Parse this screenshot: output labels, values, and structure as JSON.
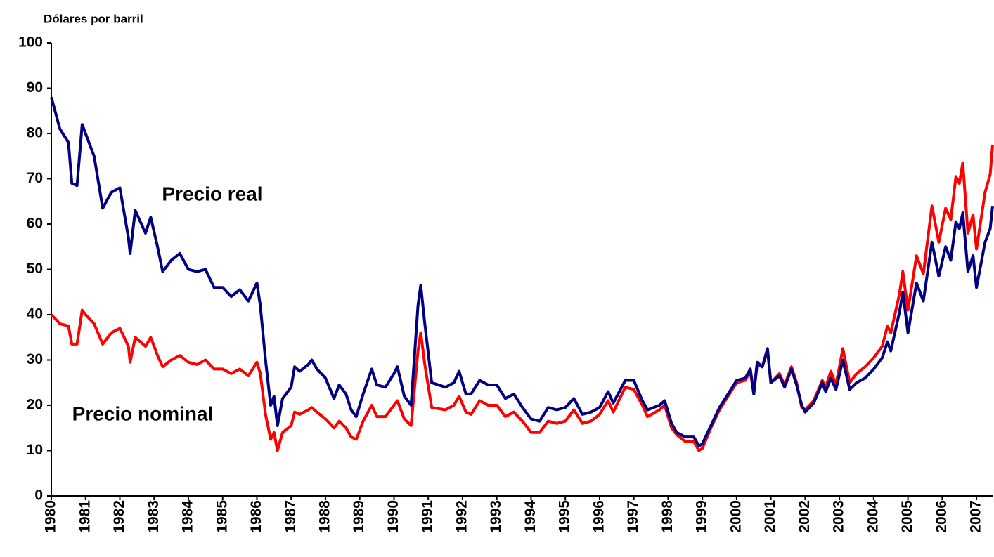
{
  "chart_data": {
    "type": "line",
    "y_axis_label": "Dólares por barril",
    "annotations": [
      "Precio real",
      "Precio nominal"
    ],
    "x": [
      1980.0,
      1980.25,
      1980.5,
      1980.6,
      1980.75,
      1980.9,
      1981.0,
      1981.25,
      1981.5,
      1981.75,
      1982.0,
      1982.25,
      1982.3,
      1982.45,
      1982.75,
      1982.9,
      1983.1,
      1983.25,
      1983.5,
      1983.75,
      1984.0,
      1984.25,
      1984.5,
      1984.75,
      1985.0,
      1985.25,
      1985.5,
      1985.75,
      1986.0,
      1986.1,
      1986.25,
      1986.4,
      1986.5,
      1986.6,
      1986.75,
      1987.0,
      1987.1,
      1987.25,
      1987.5,
      1987.6,
      1987.75,
      1988.0,
      1988.25,
      1988.4,
      1988.6,
      1988.75,
      1988.9,
      1989.1,
      1989.35,
      1989.5,
      1989.75,
      1990.0,
      1990.1,
      1990.3,
      1990.5,
      1990.7,
      1990.78,
      1990.9,
      1991.1,
      1991.5,
      1991.75,
      1991.9,
      1992.1,
      1992.25,
      1992.5,
      1992.75,
      1993.0,
      1993.25,
      1993.5,
      1993.75,
      1994.0,
      1994.25,
      1994.5,
      1994.75,
      1995.0,
      1995.25,
      1995.5,
      1995.75,
      1996.0,
      1996.25,
      1996.4,
      1996.75,
      1997.0,
      1997.25,
      1997.4,
      1997.75,
      1997.9,
      1998.1,
      1998.25,
      1998.5,
      1998.75,
      1998.9,
      1999.0,
      1999.25,
      1999.5,
      1999.75,
      2000.0,
      2000.25,
      2000.4,
      2000.5,
      2000.6,
      2000.75,
      2000.9,
      2001.0,
      2001.25,
      2001.4,
      2001.6,
      2001.75,
      2001.9,
      2002.0,
      2002.25,
      2002.5,
      2002.6,
      2002.75,
      2002.9,
      2003.1,
      2003.3,
      2003.5,
      2003.75,
      2004.0,
      2004.25,
      2004.4,
      2004.5,
      2004.75,
      2004.85,
      2005.0,
      2005.25,
      2005.45,
      2005.7,
      2005.9,
      2006.1,
      2006.25,
      2006.4,
      2006.5,
      2006.6,
      2006.75,
      2006.9,
      2007.0,
      2007.25,
      2007.4,
      2007.47
    ],
    "series": [
      {
        "name": "Precio real",
        "color": "#000080",
        "values": [
          88,
          81,
          78,
          69,
          68.5,
          82,
          80,
          75,
          63.5,
          67,
          68,
          57,
          53.5,
          63,
          58,
          61.5,
          55,
          49.5,
          52,
          53.5,
          50,
          49.5,
          50,
          46,
          46,
          44,
          45.5,
          43,
          47,
          42,
          30,
          20,
          22,
          15.5,
          21.5,
          24,
          28.5,
          27.5,
          29,
          30,
          28,
          26,
          21.5,
          24.5,
          22.5,
          19,
          17.5,
          22.5,
          28,
          24.5,
          24,
          27,
          28.5,
          22,
          20,
          42,
          46.5,
          38,
          25,
          24,
          25,
          27.5,
          22.5,
          22.5,
          25.5,
          24.5,
          24.5,
          21.5,
          22.5,
          19.5,
          17,
          16.5,
          19.5,
          19,
          19.5,
          21.5,
          18,
          18.5,
          19.5,
          23,
          20.5,
          25.5,
          25.5,
          21,
          19,
          20,
          21,
          16,
          14,
          13,
          13,
          11,
          11.5,
          15.5,
          19.5,
          22.5,
          25.5,
          26,
          28,
          22.5,
          29.5,
          28.5,
          32.5,
          25,
          26.5,
          24,
          28,
          24.5,
          20,
          18.5,
          20.5,
          25,
          23,
          26,
          23.5,
          30,
          23.5,
          25,
          26,
          28,
          30.5,
          34,
          32,
          40.5,
          45,
          36,
          47,
          43,
          56,
          48.5,
          55,
          52,
          60.5,
          59,
          62.5,
          49.5,
          53,
          46,
          56,
          59,
          64
        ]
      },
      {
        "name": "Precio nominal",
        "color": "#ff0000",
        "values": [
          40,
          38,
          37.5,
          33.5,
          33.5,
          41,
          40,
          38,
          33.5,
          36,
          37,
          33,
          29.5,
          35,
          33,
          35,
          31,
          28.5,
          30,
          31,
          29.5,
          29,
          30,
          28,
          28,
          27,
          28,
          26.5,
          29.5,
          27,
          18,
          12.5,
          14,
          10,
          14,
          15.5,
          18.5,
          18,
          19,
          19.5,
          18.5,
          17,
          15,
          16.5,
          15,
          13,
          12.5,
          16.5,
          20,
          17.5,
          17.5,
          20,
          21,
          17,
          15.5,
          32,
          36,
          29,
          19.5,
          19,
          20,
          22,
          18.5,
          18,
          21,
          20,
          20,
          17.5,
          18.5,
          16.5,
          14,
          14,
          16.5,
          16,
          16.5,
          19,
          16,
          16.5,
          18,
          21,
          18.5,
          24,
          23.5,
          20,
          17.5,
          19,
          20,
          15,
          13.5,
          12,
          12,
          10,
          10.5,
          15,
          19,
          22,
          25,
          25.5,
          27.5,
          22.5,
          29,
          28.5,
          32,
          25,
          27,
          24.5,
          28.5,
          25,
          19.5,
          19,
          21,
          25.5,
          24,
          27.5,
          24.5,
          32.5,
          25,
          27,
          28.5,
          30.5,
          33,
          37.5,
          36,
          44.5,
          49.5,
          41,
          53,
          49,
          64,
          56,
          63.5,
          61,
          70.5,
          69,
          73.5,
          58,
          62,
          54.5,
          67,
          71,
          77.5
        ]
      }
    ],
    "xlim": [
      1980,
      2007.47
    ],
    "xticks": [
      1980,
      1981,
      1982,
      1983,
      1984,
      1985,
      1986,
      1987,
      1988,
      1989,
      1990,
      1991,
      1992,
      1993,
      1994,
      1995,
      1996,
      1997,
      1998,
      1999,
      2000,
      2001,
      2002,
      2003,
      2004,
      2005,
      2006,
      2007
    ],
    "ylim": [
      0,
      100
    ],
    "yticks": [
      0,
      10,
      20,
      30,
      40,
      50,
      60,
      70,
      80,
      90,
      100
    ],
    "grid": false
  }
}
